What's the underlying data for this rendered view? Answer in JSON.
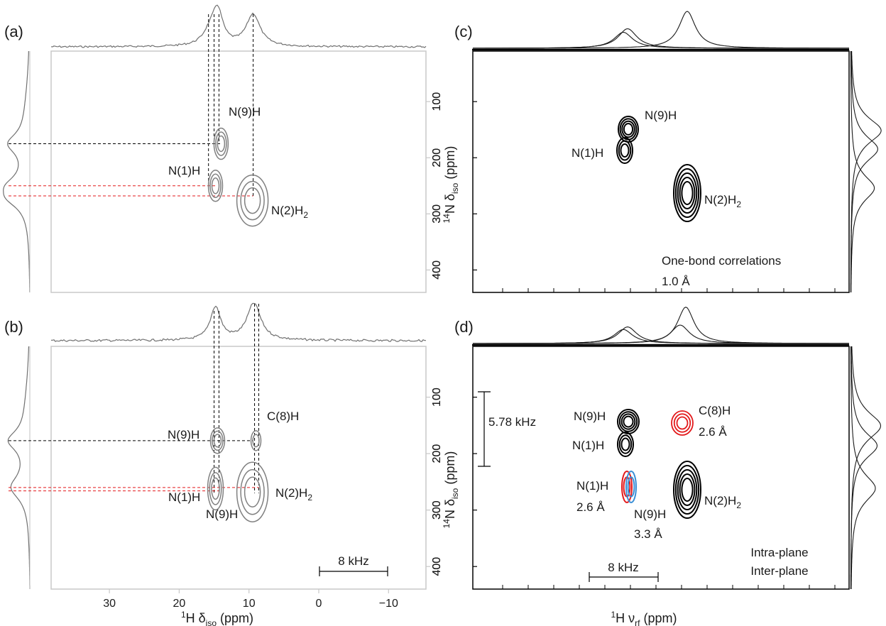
{
  "chart_data": [
    {
      "panel": "(a)",
      "type": "contour",
      "xlabel_sup": "1",
      "xlabel_main": "H δ",
      "xlabel_sub": "iso",
      "xlabel_unit": " (ppm)",
      "ylabel_sup": "14",
      "ylabel_main": "N δ",
      "ylabel_sub": "iso",
      "ylabel_unit": " (ppm)",
      "xlim": [
        40,
        -15
      ],
      "ylim": [
        10,
        440
      ],
      "yticks": [
        100,
        200,
        300,
        400
      ],
      "peaks": [
        {
          "name": "N(9)H",
          "label_main": "N(9)H",
          "x": 14.0,
          "y": 175,
          "color": "#808080"
        },
        {
          "name": "N(1)H",
          "label_main": "N(1)H",
          "x": 14.8,
          "y": 250,
          "color": "#808080"
        },
        {
          "name": "N(2)H2",
          "label_main": "N(2)H",
          "label_sub": "2",
          "x": 9.5,
          "y": 270,
          "color": "#808080"
        }
      ]
    },
    {
      "panel": "(b)",
      "type": "contour",
      "xlim": [
        40,
        -15
      ],
      "ylim": [
        10,
        440
      ],
      "xticks": [
        30,
        20,
        10,
        0,
        -10
      ],
      "xtick_labels": [
        "30",
        "20",
        "10",
        "0",
        "−10"
      ],
      "yticks": [
        100,
        200,
        300,
        400
      ],
      "scale_bar": "8 kHz",
      "peaks": [
        {
          "name": "N(9)H",
          "label_main": "N(9)H",
          "x": 14.5,
          "y": 177,
          "color": "#808080"
        },
        {
          "name": "C(8)H",
          "label_main": "C(8)H",
          "x": 9.0,
          "y": 177,
          "color": "#808080"
        },
        {
          "name": "N(1)H",
          "label_main": "N(1)H",
          "x": 14.8,
          "y": 255,
          "color": "#808080"
        },
        {
          "name": "N(9)H-2",
          "label_main": "N(9)H",
          "x": 14.8,
          "y": 268,
          "color": "#808080"
        },
        {
          "name": "N(2)H2",
          "label_main": "N(2)H",
          "label_sub": "2",
          "x": 9.5,
          "y": 265,
          "color": "#808080"
        }
      ]
    },
    {
      "panel": "(c)",
      "type": "contour",
      "ylim": [
        10,
        440
      ],
      "yticks": [
        100,
        200,
        300,
        400
      ],
      "annotation_line1": "One-bond correlations",
      "annotation_line2": "1.0 Å",
      "peaks": [
        {
          "name": "N(9)H",
          "label_main": "N(9)H",
          "x": 885,
          "y": 162,
          "color": "#000000"
        },
        {
          "name": "N(1)H",
          "label_main": "N(1)H",
          "x": 878,
          "y": 196,
          "color": "#000000"
        },
        {
          "name": "N(2)H2",
          "label_main": "N(2)H",
          "label_sub": "2",
          "x": 968,
          "y": 262,
          "color": "#000000"
        }
      ]
    },
    {
      "panel": "(d)",
      "type": "contour",
      "xlabel_sup": "1",
      "xlabel_main": "H ν",
      "xlabel_sub": "rf",
      "xlabel_unit": " (ppm)",
      "ylabel_sup": "14",
      "ylabel_main": "N δ",
      "ylabel_sub": "iso",
      "ylabel_unit": " (ppm)",
      "ylim": [
        10,
        440
      ],
      "yticks": [
        100,
        200,
        300,
        400
      ],
      "scale_bar": "8 kHz",
      "vertical_scale_bar": "5.78 kHz",
      "legend": [
        {
          "label": "Intra-plane",
          "color": "#e31a1c"
        },
        {
          "label": "Inter-plane",
          "color": "#3a8fd6"
        }
      ],
      "peaks": [
        {
          "name": "N(9)H",
          "label_main": "N(9)H",
          "x": 885,
          "y": 595,
          "color": "#000000"
        },
        {
          "name": "N(1)H",
          "label_main": "N(1)H",
          "x": 880,
          "y": 625,
          "color": "#000000"
        },
        {
          "name": "C(8)H",
          "label_main": "C(8)H",
          "label_dist": "2.6 Å",
          "x": 957,
          "y": 596,
          "color": "#e31a1c"
        },
        {
          "name": "N(1)H-intra",
          "label_main": "N(1)H",
          "label_dist": "2.6 Å",
          "x": 882,
          "y": 686,
          "color": "#e31a1c"
        },
        {
          "name": "N(9)H-inter",
          "label_main": "N(9)H",
          "label_dist": "3.3 Å",
          "x": 890,
          "y": 686,
          "color": "#3a8fd6"
        },
        {
          "name": "N(2)H2",
          "label_main": "N(2)H",
          "label_sub": "2",
          "x": 968,
          "y": 690,
          "color": "#000000"
        }
      ]
    }
  ]
}
